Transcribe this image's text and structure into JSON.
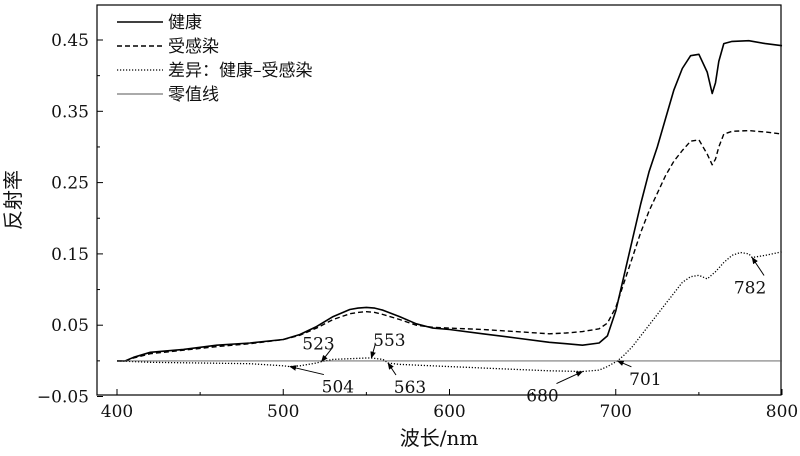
{
  "chart_data": {
    "type": "line",
    "xlabel": "波长/nm",
    "ylabel": "反射率",
    "xlim": [
      390,
      800
    ],
    "ylim": [
      -0.05,
      0.5
    ],
    "x_ticks": [
      {
        "value": 400,
        "label": "400"
      },
      {
        "value": 500,
        "label": "500"
      },
      {
        "value": 600,
        "label": "600"
      },
      {
        "value": 700,
        "label": "700"
      },
      {
        "value": 800,
        "label": "800"
      }
    ],
    "y_ticks": [
      {
        "value": -0.05,
        "label": "−0.05"
      },
      {
        "value": 0.05,
        "label": "0.05"
      },
      {
        "value": 0.15,
        "label": "0.15"
      },
      {
        "value": 0.25,
        "label": "0.25"
      },
      {
        "value": 0.35,
        "label": "0.35"
      },
      {
        "value": 0.45,
        "label": "0.45"
      }
    ],
    "legend_position": "top-left",
    "series": [
      {
        "name": "健康",
        "style": "solid",
        "color": "#000000",
        "x": [
          400,
          405,
          410,
          420,
          440,
          460,
          480,
          500,
          510,
          520,
          530,
          540,
          545,
          550,
          555,
          560,
          570,
          580,
          590,
          600,
          620,
          640,
          660,
          670,
          680,
          690,
          695,
          700,
          705,
          710,
          715,
          720,
          725,
          730,
          735,
          740,
          745,
          750,
          755,
          758,
          760,
          762,
          765,
          770,
          780,
          790,
          800
        ],
        "y": [
          0.0,
          0.0,
          0.005,
          0.012,
          0.016,
          0.022,
          0.025,
          0.03,
          0.037,
          0.048,
          0.062,
          0.072,
          0.074,
          0.075,
          0.074,
          0.071,
          0.062,
          0.052,
          0.046,
          0.044,
          0.038,
          0.032,
          0.026,
          0.024,
          0.022,
          0.025,
          0.035,
          0.07,
          0.12,
          0.17,
          0.22,
          0.265,
          0.3,
          0.34,
          0.38,
          0.41,
          0.428,
          0.43,
          0.405,
          0.375,
          0.39,
          0.42,
          0.445,
          0.448,
          0.449,
          0.445,
          0.442
        ]
      },
      {
        "name": "受感染",
        "style": "dashed",
        "color": "#000000",
        "x": [
          400,
          405,
          410,
          420,
          440,
          460,
          480,
          500,
          510,
          520,
          530,
          540,
          545,
          550,
          555,
          560,
          570,
          580,
          590,
          600,
          620,
          640,
          660,
          670,
          680,
          690,
          695,
          700,
          705,
          710,
          715,
          720,
          725,
          730,
          735,
          740,
          745,
          750,
          755,
          758,
          760,
          762,
          765,
          770,
          780,
          790,
          800
        ],
        "y": [
          0.0,
          0.0,
          0.004,
          0.01,
          0.015,
          0.02,
          0.024,
          0.03,
          0.036,
          0.046,
          0.058,
          0.066,
          0.068,
          0.069,
          0.068,
          0.065,
          0.058,
          0.05,
          0.047,
          0.046,
          0.044,
          0.041,
          0.038,
          0.039,
          0.041,
          0.045,
          0.053,
          0.075,
          0.11,
          0.145,
          0.18,
          0.21,
          0.235,
          0.26,
          0.28,
          0.295,
          0.308,
          0.31,
          0.29,
          0.275,
          0.283,
          0.3,
          0.318,
          0.322,
          0.323,
          0.321,
          0.318
        ]
      },
      {
        "name": "差异：健康–受感染",
        "style": "dotted",
        "color": "#000000",
        "x": [
          400,
          420,
          450,
          480,
          500,
          504,
          510,
          520,
          523,
          530,
          540,
          550,
          553,
          560,
          563,
          570,
          580,
          600,
          620,
          640,
          660,
          680,
          690,
          695,
          701,
          705,
          710,
          720,
          730,
          740,
          745,
          750,
          755,
          760,
          765,
          770,
          775,
          780,
          782,
          790,
          800
        ],
        "y": [
          0.0,
          -0.002,
          -0.003,
          -0.004,
          -0.007,
          -0.008,
          -0.007,
          -0.003,
          -0.001,
          0.002,
          0.003,
          0.004,
          0.004,
          0.002,
          -0.003,
          -0.005,
          -0.006,
          -0.008,
          -0.01,
          -0.012,
          -0.014,
          -0.015,
          -0.013,
          -0.008,
          0.0,
          0.008,
          0.02,
          0.05,
          0.08,
          0.11,
          0.118,
          0.12,
          0.115,
          0.125,
          0.138,
          0.148,
          0.152,
          0.15,
          0.145,
          0.148,
          0.153
        ]
      },
      {
        "name": "零值线",
        "style": "thin",
        "color": "#555555",
        "x": [
          400,
          800
        ],
        "y": [
          0.0,
          0.0
        ]
      }
    ],
    "annotations": [
      {
        "label": "523",
        "x": 523,
        "y": -0.001
      },
      {
        "label": "553",
        "x": 553,
        "y": 0.004
      },
      {
        "label": "504",
        "x": 504,
        "y": -0.008
      },
      {
        "label": "563",
        "x": 563,
        "y": -0.003
      },
      {
        "label": "680",
        "x": 680,
        "y": -0.015
      },
      {
        "label": "701",
        "x": 701,
        "y": 0.0
      },
      {
        "label": "782",
        "x": 782,
        "y": 0.145
      }
    ]
  }
}
